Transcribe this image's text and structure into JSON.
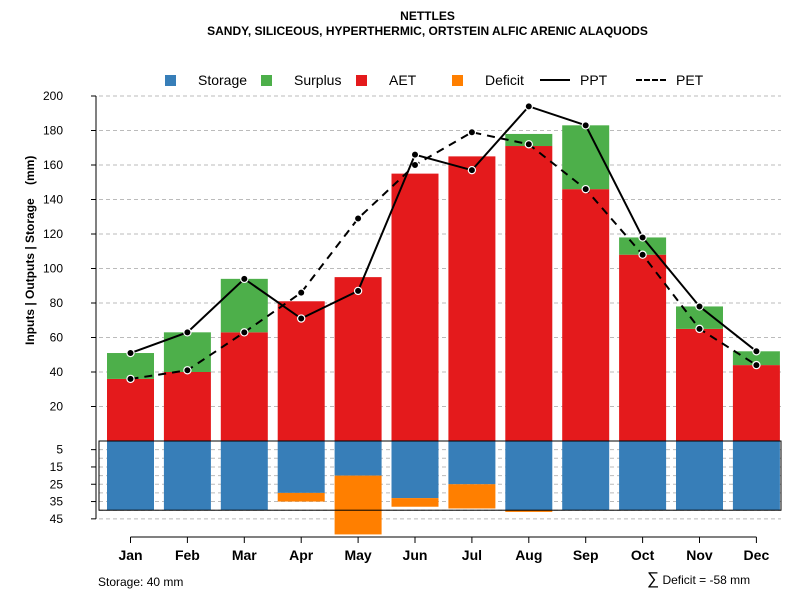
{
  "chart_data": {
    "type": "bar",
    "title": "NETTLES",
    "subtitle": "SANDY, SILICEOUS, HYPERTHERMIC, ORTSTEIN ALFIC ARENIC ALAQUODS",
    "ylabel": "Inputs | Outputs | Storage    (mm)",
    "categories": [
      "Jan",
      "Feb",
      "Mar",
      "Apr",
      "May",
      "Jun",
      "Jul",
      "Aug",
      "Sep",
      "Oct",
      "Nov",
      "Dec"
    ],
    "ylim_top": [
      0,
      200
    ],
    "yticks_top": [
      20,
      40,
      60,
      80,
      100,
      120,
      140,
      160,
      180,
      200
    ],
    "ylim_bottom": [
      0,
      45
    ],
    "yticks_bottom": [
      5,
      15,
      25,
      35,
      45
    ],
    "series": [
      {
        "name": "AET",
        "color": "#E41A1C",
        "values": [
          36,
          40,
          63,
          81,
          95,
          155,
          165,
          171,
          146,
          108,
          65,
          44
        ]
      },
      {
        "name": "Surplus",
        "color": "#4DAF4A",
        "values": [
          15,
          23,
          31,
          0,
          0,
          0,
          0,
          7,
          37,
          10,
          13,
          8
        ]
      },
      {
        "name": "PPT",
        "color": "#000000",
        "style": "solid",
        "values": [
          51,
          63,
          94,
          71,
          87,
          166,
          157,
          194,
          183,
          118,
          78,
          52
        ]
      },
      {
        "name": "PET",
        "color": "#000000",
        "style": "dashed",
        "values": [
          36,
          41,
          63,
          86,
          129,
          160,
          179,
          172,
          146,
          108,
          65,
          44
        ]
      },
      {
        "name": "Storage",
        "color": "#377EB8",
        "values": [
          40,
          40,
          40,
          30,
          20,
          33,
          25,
          40,
          40,
          40,
          40,
          40
        ]
      },
      {
        "name": "Deficit",
        "color": "#FF7F00",
        "values": [
          0,
          0,
          0,
          5,
          34,
          5,
          14,
          1,
          0,
          0,
          0,
          0
        ]
      }
    ],
    "legend_order": [
      "Storage",
      "Surplus",
      "AET",
      "Deficit",
      "PPT",
      "PET"
    ],
    "storage_capacity": 40,
    "storage_note": "Storage: 40 mm",
    "deficit_note": "Deficit = -58 mm",
    "deficit_symbol": "∑"
  }
}
